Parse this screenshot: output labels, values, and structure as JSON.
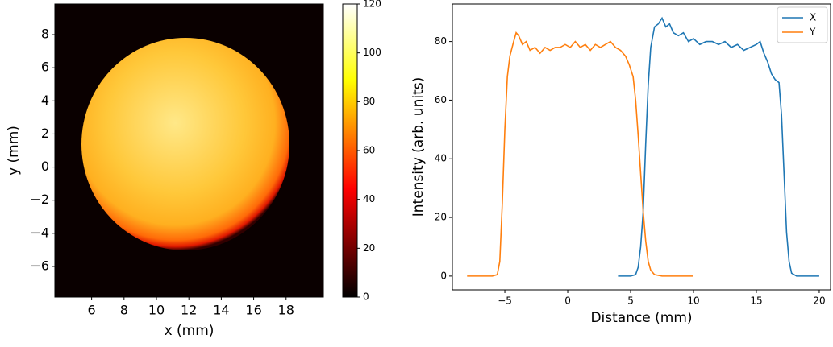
{
  "chart_data": [
    {
      "type": "image",
      "colormap": "hot",
      "xlabel": "x (mm)",
      "ylabel": "y (mm)",
      "xlim": [
        3.73,
        20.3
      ],
      "ylim": [
        -7.85,
        9.85
      ],
      "xticks": [
        6,
        8,
        10,
        12,
        14,
        16,
        18
      ],
      "yticks": [
        {
          "value": -6,
          "label": "−6"
        },
        {
          "value": -4,
          "label": "−4"
        },
        {
          "value": -2,
          "label": "−2"
        },
        0,
        2,
        4,
        6,
        8
      ],
      "clim": [
        0,
        120
      ],
      "cticks": [
        0,
        20,
        40,
        60,
        80,
        100,
        120
      ]
    },
    {
      "type": "line",
      "xlabel": "Distance (mm)",
      "ylabel": "Intensity (arb. units)",
      "xlim": [
        -9.17,
        20.9
      ],
      "ylim": [
        -4.7,
        92.8
      ],
      "xticks": [
        {
          "value": -5,
          "label": "−5"
        },
        0,
        5,
        10,
        15,
        20
      ],
      "yticks": [
        0,
        20,
        40,
        60,
        80
      ],
      "legend": "upper right",
      "series": [
        {
          "name": "X",
          "color": "#1f77b4",
          "x": [
            4,
            5,
            5.4,
            5.6,
            5.8,
            6,
            6.2,
            6.4,
            6.6,
            6.9,
            7.2,
            7.5,
            7.8,
            8.1,
            8.4,
            8.8,
            9.2,
            9.6,
            10,
            10.5,
            11,
            11.5,
            12,
            12.5,
            13,
            13.5,
            14,
            14.5,
            15,
            15.3,
            15.6,
            15.9,
            16.2,
            16.5,
            16.8,
            17,
            17.2,
            17.4,
            17.6,
            17.8,
            18.2,
            20
          ],
          "values": [
            0,
            0,
            0.5,
            3,
            10,
            22,
            45,
            65,
            78,
            85,
            86,
            88,
            85,
            86,
            83,
            82,
            83,
            80,
            81,
            79,
            80,
            80,
            79,
            80,
            78,
            79,
            77,
            78,
            79,
            80,
            76,
            73,
            69,
            67,
            66,
            55,
            35,
            15,
            5,
            1,
            0,
            0
          ]
        },
        {
          "name": "Y",
          "color": "#ff7f0e",
          "x": [
            -8,
            -7,
            -6,
            -5.6,
            -5.4,
            -5.2,
            -5,
            -4.8,
            -4.6,
            -4.3,
            -4.1,
            -3.9,
            -3.6,
            -3.3,
            -3,
            -2.6,
            -2.2,
            -1.8,
            -1.4,
            -1,
            -0.6,
            -0.2,
            0.2,
            0.6,
            1,
            1.4,
            1.8,
            2.2,
            2.6,
            3,
            3.4,
            3.8,
            4.2,
            4.6,
            4.9,
            5.2,
            5.4,
            5.6,
            5.8,
            6,
            6.2,
            6.4,
            6.6,
            6.9,
            7.5,
            10
          ],
          "values": [
            0,
            0,
            0,
            0.5,
            5,
            25,
            50,
            68,
            75,
            80,
            83,
            82,
            79,
            80,
            77,
            78,
            76,
            78,
            77,
            78,
            78,
            79,
            78,
            80,
            78,
            79,
            77,
            79,
            78,
            79,
            80,
            78,
            77,
            75,
            72,
            68,
            60,
            48,
            35,
            22,
            12,
            5,
            2,
            0.5,
            0,
            0
          ]
        }
      ]
    }
  ]
}
